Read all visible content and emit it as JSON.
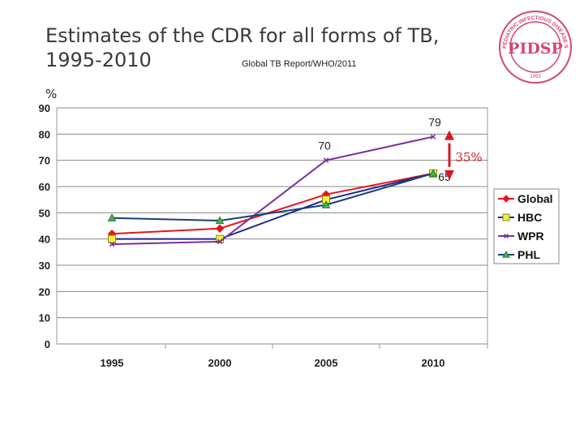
{
  "page": {
    "title_line1": "Estimates of the CDR for all forms of TB,",
    "title_line2": "1995-2010",
    "source": "Global TB Report/WHO/2011",
    "logo_text_top": "PEDIATRIC INFECTIOUS DISEASE SOCIETY OF THE PHILIPPINES",
    "logo_text_center": "PIDSP",
    "logo_year": "1993"
  },
  "chart_data": {
    "type": "line",
    "title": "",
    "xlabel": "",
    "ylabel": "%",
    "x": [
      "1995",
      "2000",
      "2005",
      "2010"
    ],
    "ylim": [
      0,
      90
    ],
    "yticks": [
      "0",
      "10",
      "20",
      "30",
      "40",
      "50",
      "60",
      "70",
      "80",
      "90"
    ],
    "grid": "horizontal",
    "legend_position": "right",
    "series": [
      {
        "name": "Global",
        "values": [
          42,
          44,
          57,
          65
        ],
        "color": "#e8141b",
        "marker": "diamond"
      },
      {
        "name": "HBC",
        "values": [
          40,
          40,
          55,
          65
        ],
        "color": "#1f2a8c",
        "marker": "square",
        "marker_fill": "#f5ef3b"
      },
      {
        "name": "WPR",
        "values": [
          38,
          39,
          70,
          79
        ],
        "color": "#7b2fa0",
        "marker": "x"
      },
      {
        "name": "PHL",
        "values": [
          48,
          47,
          53,
          65
        ],
        "color": "#1a3f7a",
        "marker": "triangle",
        "marker_fill": "#3db84a"
      }
    ],
    "annotations": [
      {
        "text": "79",
        "x": "2010",
        "y": 79
      },
      {
        "text": "70",
        "x": "2005",
        "y": 70
      },
      {
        "text": "65",
        "x": "2010",
        "y": 65
      },
      {
        "text": "35%",
        "x": "2010",
        "y": 72
      }
    ],
    "range_arrow": {
      "from": 65,
      "to": 79,
      "color": "#d71920"
    }
  }
}
